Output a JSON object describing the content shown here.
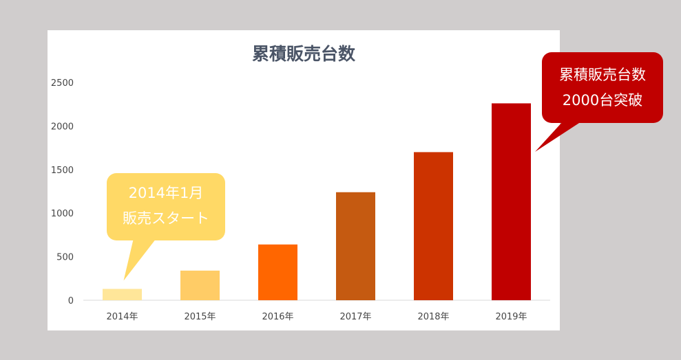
{
  "chart_data": {
    "type": "bar",
    "title": "累積販売台数",
    "categories": [
      "2014年",
      "2015年",
      "2016年",
      "2017年",
      "2018年",
      "2019年"
    ],
    "values": [
      130,
      340,
      640,
      1240,
      1700,
      2260
    ],
    "ylim": [
      0,
      2500
    ],
    "yticks": [
      0,
      500,
      1000,
      1500,
      2000,
      2500
    ],
    "bar_colors": [
      "#ffe699",
      "#ffcc66",
      "#ff6600",
      "#c55a11",
      "#cc3300",
      "#c00000"
    ],
    "grid": false,
    "legend": "none",
    "annotations": [
      {
        "lines": [
          "2014年1月",
          "販売スタート"
        ],
        "target": "2014年",
        "color": "#ffd966"
      },
      {
        "lines": [
          "累積販売台数",
          "2000台突破"
        ],
        "target": "2019年",
        "color": "#c00000"
      }
    ]
  }
}
